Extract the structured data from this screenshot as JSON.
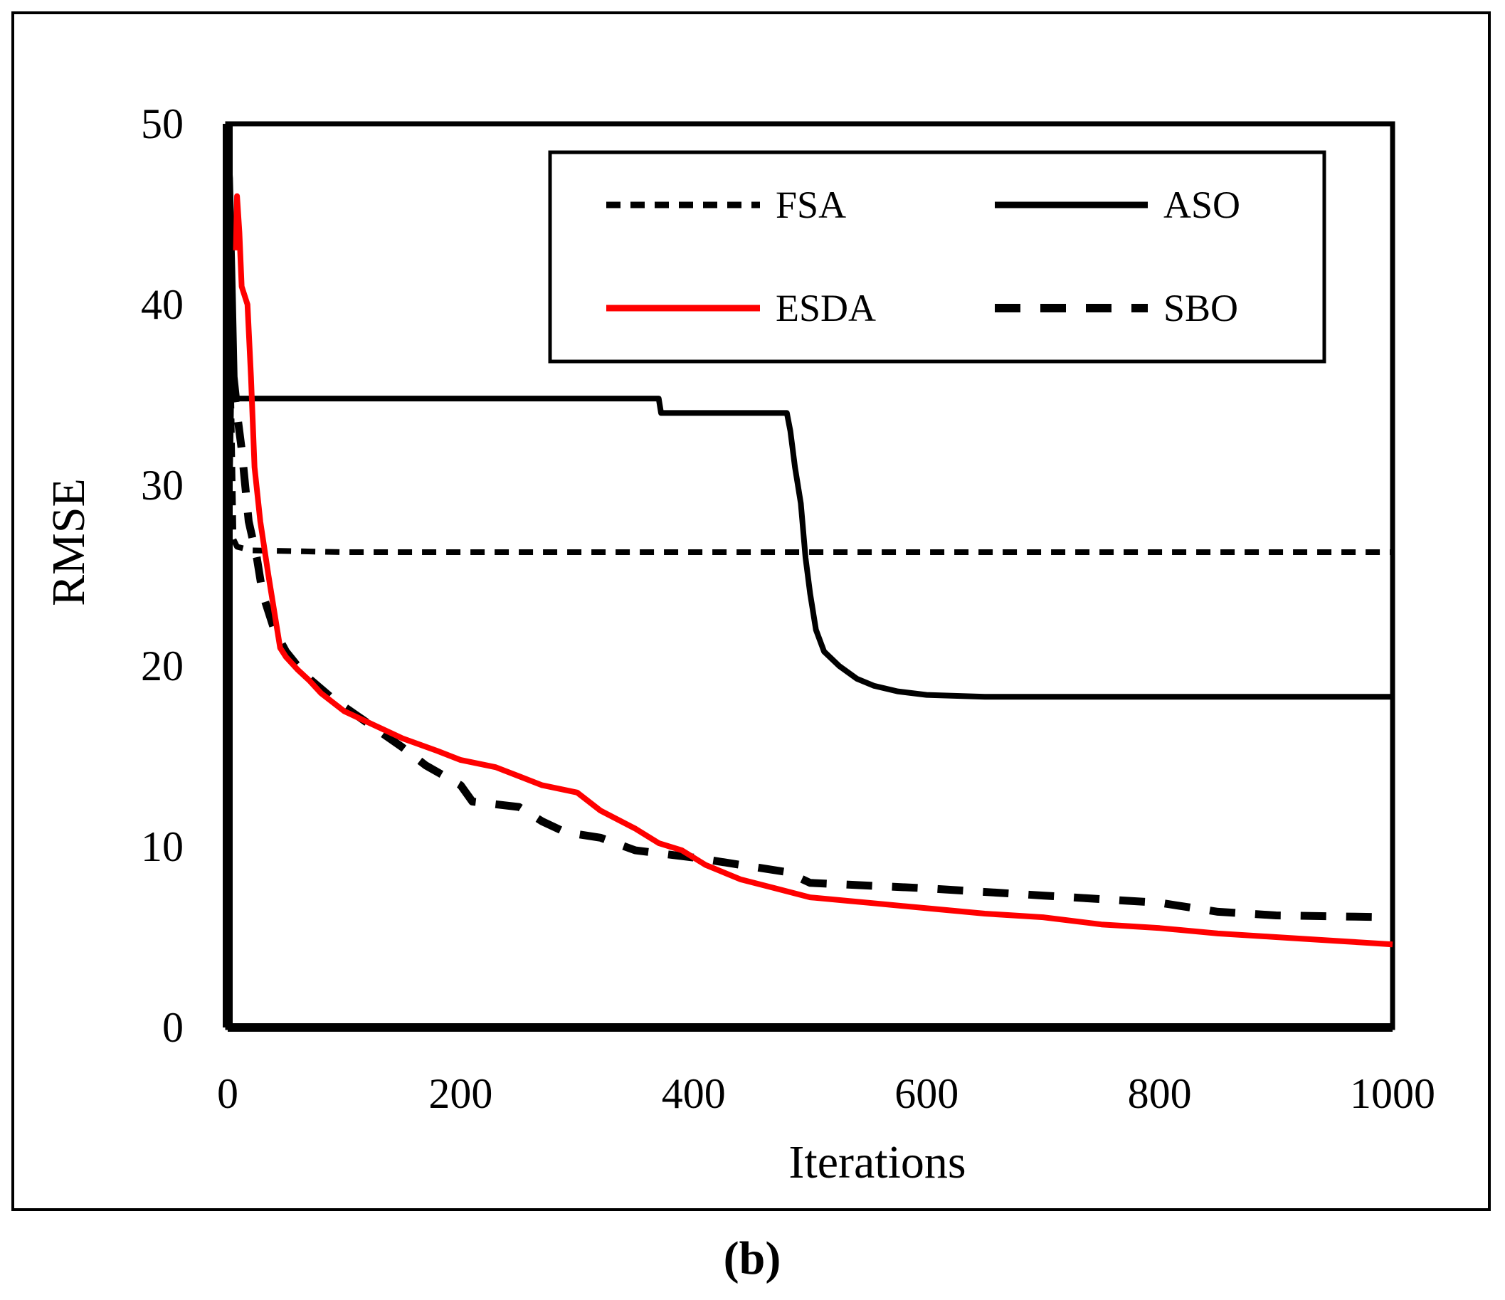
{
  "chart_data": {
    "type": "line",
    "title": "",
    "xlabel": "Iterations",
    "ylabel": "RMSE",
    "xlim": [
      0,
      1000
    ],
    "ylim": [
      0,
      50
    ],
    "xticks": [
      "0",
      "200",
      "400",
      "600",
      "800",
      "1000"
    ],
    "yticks": [
      "0",
      "10",
      "20",
      "30",
      "40",
      "50"
    ],
    "grid": false,
    "legend_position": "top-right",
    "caption": "(b)",
    "series": [
      {
        "name": "FSA",
        "style": "short-dash",
        "color": "#000000",
        "points": [
          [
            0,
            27
          ],
          [
            1,
            27
          ],
          [
            2,
            31
          ],
          [
            3,
            35
          ],
          [
            5,
            27
          ],
          [
            8,
            26.6
          ],
          [
            20,
            26.4
          ],
          [
            100,
            26.3
          ],
          [
            400,
            26.3
          ],
          [
            700,
            26.3
          ],
          [
            1000,
            26.3
          ]
        ]
      },
      {
        "name": "ASO",
        "style": "solid",
        "color": "#000000",
        "points": [
          [
            0,
            49
          ],
          [
            2,
            47
          ],
          [
            4,
            42
          ],
          [
            6,
            36
          ],
          [
            8,
            34.8
          ],
          [
            370,
            34.8
          ],
          [
            372,
            34
          ],
          [
            480,
            34
          ],
          [
            483,
            33
          ],
          [
            487,
            31
          ],
          [
            492,
            29
          ],
          [
            496,
            26
          ],
          [
            500,
            24
          ],
          [
            505,
            22
          ],
          [
            512,
            20.8
          ],
          [
            525,
            20
          ],
          [
            540,
            19.3
          ],
          [
            555,
            18.9
          ],
          [
            575,
            18.6
          ],
          [
            600,
            18.4
          ],
          [
            650,
            18.3
          ],
          [
            700,
            18.3
          ],
          [
            800,
            18.3
          ],
          [
            1000,
            18.3
          ]
        ]
      },
      {
        "name": "ESDA",
        "style": "solid",
        "color": "#ff0000",
        "points": [
          [
            7,
            43
          ],
          [
            8,
            46
          ],
          [
            10,
            44
          ],
          [
            12,
            41
          ],
          [
            17,
            40
          ],
          [
            20,
            36
          ],
          [
            23,
            31
          ],
          [
            28,
            28
          ],
          [
            35,
            25
          ],
          [
            40,
            23
          ],
          [
            45,
            21
          ],
          [
            50,
            20.5
          ],
          [
            60,
            19.8
          ],
          [
            70,
            19.2
          ],
          [
            80,
            18.5
          ],
          [
            100,
            17.5
          ],
          [
            130,
            16.6
          ],
          [
            150,
            16
          ],
          [
            180,
            15.3
          ],
          [
            200,
            14.8
          ],
          [
            230,
            14.4
          ],
          [
            250,
            13.9
          ],
          [
            270,
            13.4
          ],
          [
            300,
            13
          ],
          [
            320,
            12
          ],
          [
            350,
            11
          ],
          [
            370,
            10.2
          ],
          [
            390,
            9.8
          ],
          [
            410,
            9
          ],
          [
            440,
            8.2
          ],
          [
            470,
            7.7
          ],
          [
            500,
            7.2
          ],
          [
            550,
            6.9
          ],
          [
            600,
            6.6
          ],
          [
            650,
            6.3
          ],
          [
            700,
            6.1
          ],
          [
            750,
            5.7
          ],
          [
            800,
            5.5
          ],
          [
            850,
            5.2
          ],
          [
            900,
            5
          ],
          [
            950,
            4.8
          ],
          [
            1000,
            4.6
          ]
        ]
      },
      {
        "name": "SBO",
        "style": "long-dash",
        "color": "#000000",
        "points": [
          [
            4,
            36
          ],
          [
            8,
            34
          ],
          [
            12,
            32
          ],
          [
            18,
            28
          ],
          [
            25,
            26
          ],
          [
            30,
            24
          ],
          [
            40,
            22
          ],
          [
            50,
            20.8
          ],
          [
            60,
            20
          ],
          [
            70,
            19.3
          ],
          [
            90,
            18.2
          ],
          [
            110,
            17.3
          ],
          [
            130,
            16.4
          ],
          [
            150,
            15.5
          ],
          [
            170,
            14.5
          ],
          [
            200,
            13.4
          ],
          [
            210,
            12.5
          ],
          [
            250,
            12.2
          ],
          [
            270,
            11.4
          ],
          [
            290,
            10.8
          ],
          [
            320,
            10.5
          ],
          [
            350,
            9.8
          ],
          [
            400,
            9.4
          ],
          [
            440,
            9
          ],
          [
            480,
            8.6
          ],
          [
            500,
            8
          ],
          [
            600,
            7.7
          ],
          [
            700,
            7.3
          ],
          [
            800,
            6.9
          ],
          [
            850,
            6.4
          ],
          [
            900,
            6.2
          ],
          [
            1000,
            6.1
          ]
        ]
      }
    ]
  }
}
